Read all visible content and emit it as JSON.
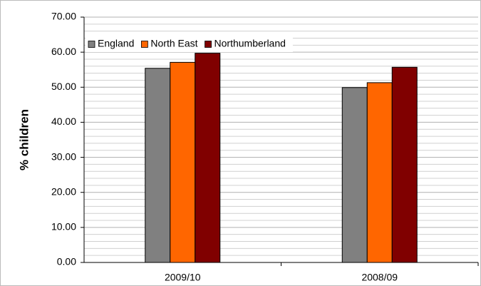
{
  "chart_data": {
    "type": "bar",
    "categories": [
      "2009/10",
      "2008/09"
    ],
    "ylabel": "% children",
    "series": [
      {
        "name": "England",
        "color": "#808080",
        "values": [
          55.4,
          49.9
        ]
      },
      {
        "name": "North East",
        "color": "#ff6600",
        "values": [
          57.1,
          51.3
        ]
      },
      {
        "name": "Northumberland",
        "color": "#800000",
        "values": [
          59.7,
          55.7
        ]
      }
    ],
    "ylim": [
      0,
      70
    ],
    "yticks": [
      {
        "value": 0,
        "label": "0.00"
      },
      {
        "value": 10,
        "label": "10.00"
      },
      {
        "value": 20,
        "label": "20.00"
      },
      {
        "value": 30,
        "label": "30.00"
      },
      {
        "value": 40,
        "label": "40.00"
      },
      {
        "value": 50,
        "label": "50.00"
      },
      {
        "value": 60,
        "label": "60.00"
      },
      {
        "value": 70,
        "label": "70.00"
      }
    ],
    "minor_grid": [
      2,
      4,
      6,
      8,
      12,
      14,
      16,
      18,
      22,
      24,
      26,
      28,
      32,
      34,
      36,
      38,
      42,
      44,
      46,
      48,
      52,
      54,
      56,
      58,
      62,
      64,
      66,
      68
    ],
    "grid": true,
    "legend": "top-left"
  }
}
